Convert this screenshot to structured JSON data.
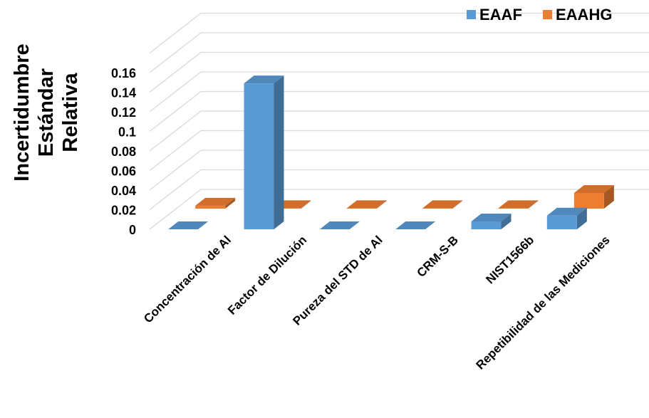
{
  "chart_data": {
    "type": "bar",
    "style": "3d-clustered-column",
    "categories": [
      "Concentración de Al",
      "Factor de Dilución",
      "Pureza del STD  de Al",
      "CRM-S-B",
      "NIST1566b",
      "Repetibilidad de las Mediciones"
    ],
    "series": [
      {
        "name": "EAAF",
        "color": "#5b9bd5",
        "values": [
          0.0,
          0.149,
          0.0,
          0.0,
          0.008,
          0.014
        ]
      },
      {
        "name": "EAAHG",
        "color": "#ed7d31",
        "values": [
          0.003,
          0.0005,
          0.0005,
          0.0005,
          0.0005,
          0.016
        ]
      }
    ],
    "ylabel_lines": [
      "Incertidumbre",
      "Estándar",
      "Relativa"
    ],
    "yticks": [
      "0",
      "0.02",
      "0.04",
      "0.06",
      "0.08",
      "0.1",
      "0.12",
      "0.14",
      "0.16"
    ],
    "ylim": [
      0,
      0.18
    ],
    "grid": true,
    "legend_position": "top-right"
  }
}
